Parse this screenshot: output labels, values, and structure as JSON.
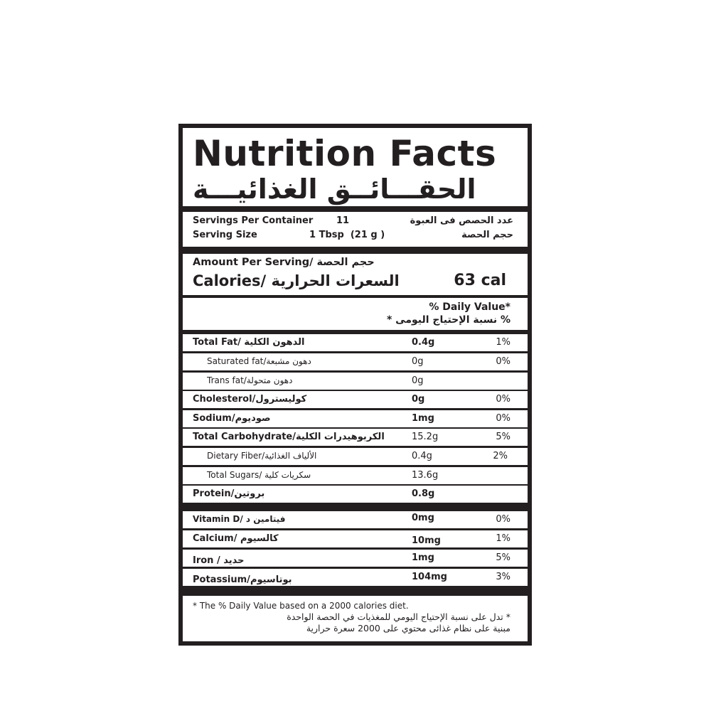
{
  "title": {
    "en": "Nutrition Facts",
    "ar": "الحقـــائــق الغذائيـــة"
  },
  "servings": {
    "per_container_label": "Servings Per Container",
    "per_container_value": "11",
    "per_container_ar": "عدد الحصص فى العبوة",
    "size_label": "Serving Size",
    "size_value": "1 Tbsp  (21 g )",
    "size_ar": "حجم الحصة"
  },
  "amount": {
    "per_serving": "Amount Per Serving/ حجم الحصة",
    "calories_label": "Calories/ السعرات الحرارية",
    "calories_value": "63 cal"
  },
  "daily_value": {
    "en": "% Daily Value*",
    "ar": "* نسبة الإحتياج اليومى %"
  },
  "nutrients": [
    {
      "label": "Total Fat/ الدهون الكلية",
      "amount": "0.4g",
      "dv": "1%"
    },
    {
      "label": "Saturated fat/دهون مشبعة",
      "amount": "0g",
      "dv": "0%"
    },
    {
      "label": "Trans fat/دهون متحولة",
      "amount": "0g",
      "dv": ""
    },
    {
      "label": "Cholesterol/كوليسترول",
      "amount": "0g",
      "dv": "0%"
    },
    {
      "label": "Sodium/صوديوم",
      "amount": "1mg",
      "dv": "0%"
    },
    {
      "label": "Total Carbohydrate/الكربوهيدرات الكلية",
      "amount": "15.2g",
      "dv": "5%"
    },
    {
      "label": "Dietary Fiber/الألياف الغذائية",
      "amount": "0.4g",
      "dv": "2%"
    },
    {
      "label": "Total Sugars/ سكريات كلية",
      "amount": "13.6g",
      "dv": ""
    },
    {
      "label": "Protein/بروتين",
      "amount": "0.8g",
      "dv": ""
    }
  ],
  "minerals": [
    {
      "label": "Vitamin D/ فيتامين د",
      "amount": "0mg",
      "dv": "0%"
    },
    {
      "label": "Calcium/ كالسيوم",
      "amount": "10mg",
      "dv": "1%"
    },
    {
      "label": "Iron / حديد",
      "amount": "1mg",
      "dv": "5%"
    },
    {
      "label": "Potassium/بوتاسيوم",
      "amount": "104mg",
      "dv": "3%"
    }
  ],
  "footnote": {
    "en": "* The % Daily Value based on a 2000 calories diet.",
    "ar1": "* تدل على نسبة الإحتياج اليومي للمغذيات في الحصة الواحدة",
    "ar2": "مبنية على نظام غذائى محتوي على 2000 سعرة حرارية"
  }
}
